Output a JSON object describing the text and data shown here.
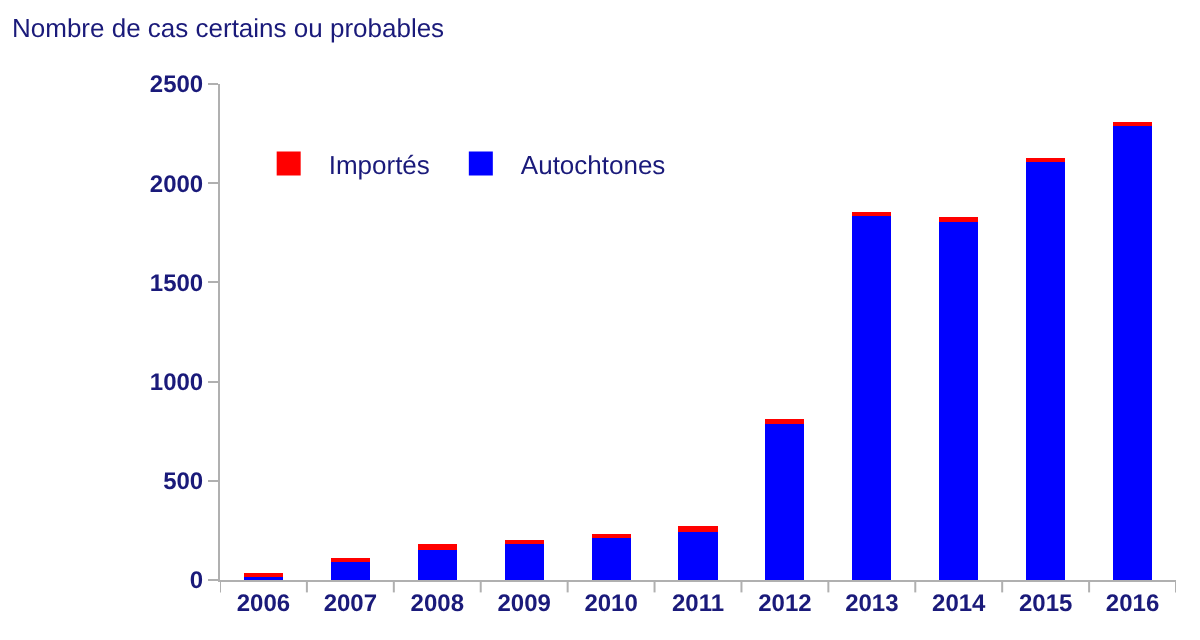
{
  "chart_data": {
    "type": "bar",
    "title": "Nombre de cas certains ou probables",
    "stacked": true,
    "categories": [
      "2006",
      "2007",
      "2008",
      "2009",
      "2010",
      "2011",
      "2012",
      "2013",
      "2014",
      "2015",
      "2016"
    ],
    "series": [
      {
        "name": "Autochtones",
        "color": "#0000ff",
        "values": [
          13,
          95,
          152,
          179,
          213,
          243,
          796,
          1835,
          1808,
          2110,
          2292
        ]
      },
      {
        "name": "Importés",
        "color": "#ff0000",
        "values": [
          24,
          13,
          27,
          24,
          17,
          27,
          14,
          16,
          20,
          14,
          13
        ]
      }
    ],
    "ylim": [
      0,
      2500
    ],
    "yticks": [
      0,
      500,
      1000,
      1500,
      2000,
      2500
    ],
    "legend": "top left"
  }
}
